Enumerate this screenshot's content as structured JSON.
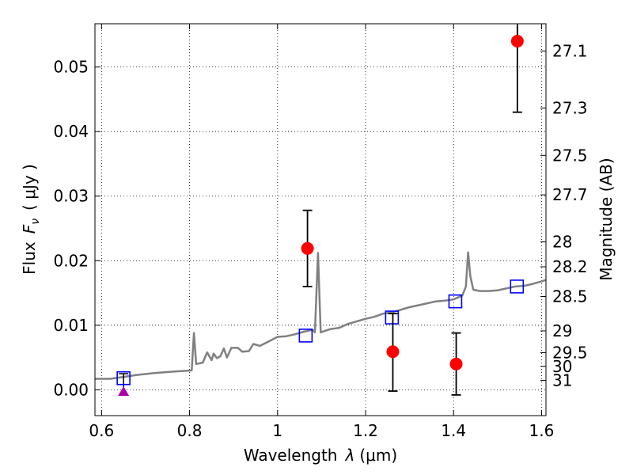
{
  "chart_data": {
    "type": "scatter",
    "xlabel": "Wavelength",
    "xlabel_symbol": "λ",
    "xlabel_unit": "(μm)",
    "ylabel": "Flux",
    "ylabel_symbol_base": "F",
    "ylabel_symbol_sub": "ν",
    "ylabel_unit": "( μJy )",
    "y2label": "Magnitude (AB)",
    "xlim": [
      0.585,
      1.61
    ],
    "ylim": [
      -0.004,
      0.0567
    ],
    "grid": true,
    "x_ticks": [
      {
        "value": 0.6,
        "label": "0.6"
      },
      {
        "value": 0.8,
        "label": "0.8"
      },
      {
        "value": 1.0,
        "label": "1"
      },
      {
        "value": 1.2,
        "label": "1.2"
      },
      {
        "value": 1.4,
        "label": "1.4"
      },
      {
        "value": 1.6,
        "label": "1.6"
      }
    ],
    "y_ticks": [
      {
        "value": 0.0,
        "label": "0.00"
      },
      {
        "value": 0.01,
        "label": "0.01"
      },
      {
        "value": 0.02,
        "label": "0.02"
      },
      {
        "value": 0.03,
        "label": "0.03"
      },
      {
        "value": 0.04,
        "label": "0.04"
      },
      {
        "value": 0.05,
        "label": "0.05"
      }
    ],
    "y2_ticks": [
      {
        "label": "27.1"
      },
      {
        "label": "27.3"
      },
      {
        "label": "27.5"
      },
      {
        "label": "27.7"
      },
      {
        "label": "28"
      },
      {
        "label": "28.2"
      },
      {
        "label": "28.5"
      },
      {
        "label": "29"
      },
      {
        "label": "29.5"
      },
      {
        "label": "30"
      },
      {
        "label": "31"
      }
    ],
    "model_spectrum": {
      "color": "#808080",
      "points": [
        [
          0.585,
          0.0017
        ],
        [
          0.62,
          0.0017
        ],
        [
          0.65,
          0.002
        ],
        [
          0.68,
          0.0023
        ],
        [
          0.72,
          0.0026
        ],
        [
          0.76,
          0.0028
        ],
        [
          0.805,
          0.003
        ],
        [
          0.81,
          0.0088
        ],
        [
          0.815,
          0.004
        ],
        [
          0.83,
          0.0042
        ],
        [
          0.84,
          0.0058
        ],
        [
          0.85,
          0.0046
        ],
        [
          0.855,
          0.0056
        ],
        [
          0.862,
          0.0049
        ],
        [
          0.87,
          0.0052
        ],
        [
          0.878,
          0.0064
        ],
        [
          0.885,
          0.005
        ],
        [
          0.895,
          0.0065
        ],
        [
          0.91,
          0.0065
        ],
        [
          0.92,
          0.0059
        ],
        [
          0.935,
          0.006
        ],
        [
          0.945,
          0.0071
        ],
        [
          0.96,
          0.0068
        ],
        [
          0.98,
          0.0075
        ],
        [
          1.0,
          0.0082
        ],
        [
          1.02,
          0.0083
        ],
        [
          1.04,
          0.0086
        ],
        [
          1.06,
          0.009
        ],
        [
          1.08,
          0.0093
        ],
        [
          1.085,
          0.0089
        ],
        [
          1.092,
          0.0212
        ],
        [
          1.098,
          0.0089
        ],
        [
          1.12,
          0.0094
        ],
        [
          1.14,
          0.0096
        ],
        [
          1.16,
          0.0102
        ],
        [
          1.18,
          0.0106
        ],
        [
          1.2,
          0.011
        ],
        [
          1.22,
          0.0113
        ],
        [
          1.24,
          0.0118
        ],
        [
          1.26,
          0.012
        ],
        [
          1.28,
          0.0124
        ],
        [
          1.3,
          0.0128
        ],
        [
          1.32,
          0.0131
        ],
        [
          1.34,
          0.0134
        ],
        [
          1.36,
          0.0137
        ],
        [
          1.38,
          0.0138
        ],
        [
          1.4,
          0.014
        ],
        [
          1.42,
          0.0146
        ],
        [
          1.428,
          0.016
        ],
        [
          1.433,
          0.0213
        ],
        [
          1.438,
          0.0176
        ],
        [
          1.445,
          0.0155
        ],
        [
          1.46,
          0.0153
        ],
        [
          1.48,
          0.0153
        ],
        [
          1.5,
          0.0154
        ],
        [
          1.52,
          0.0157
        ],
        [
          1.54,
          0.016
        ],
        [
          1.56,
          0.0161
        ],
        [
          1.58,
          0.0164
        ],
        [
          1.6,
          0.0168
        ],
        [
          1.61,
          0.017
        ]
      ]
    },
    "model_photometry": {
      "marker": "open-square",
      "color": "#0000ff",
      "points": [
        [
          0.65,
          0.0018
        ],
        [
          1.064,
          0.0084
        ],
        [
          1.26,
          0.0112
        ],
        [
          1.404,
          0.0137
        ],
        [
          1.544,
          0.016
        ]
      ]
    },
    "observed": {
      "marker": "circle",
      "color": "#ff0000",
      "errorbar_color": "#000000",
      "points": [
        {
          "x": 1.068,
          "y": 0.0219,
          "lo": 0.016,
          "hi": 0.0278
        },
        {
          "x": 1.262,
          "y": 0.0059,
          "lo": -0.0002,
          "hi": 0.0118
        },
        {
          "x": 1.406,
          "y": 0.004,
          "lo": -0.0008,
          "hi": 0.0088
        },
        {
          "x": 1.545,
          "y": 0.054,
          "lo": 0.043,
          "hi": 0.0567
        }
      ]
    },
    "upper_limit": {
      "marker": "triangle",
      "color": "#aa00aa",
      "point": {
        "x": 0.65,
        "y": -0.0002,
        "err_hi": 0.0025
      }
    }
  }
}
